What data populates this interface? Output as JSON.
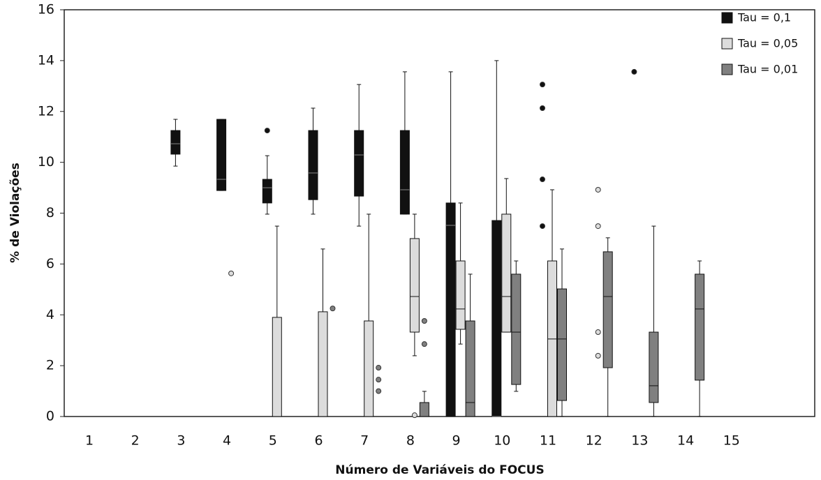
{
  "chart_data": {
    "type": "boxplot",
    "x_label": "Número de Variáveis do FOCUS",
    "y_label": "% de Violações",
    "categories": [
      "1",
      "2",
      "3",
      "4",
      "5",
      "6",
      "7",
      "8",
      "9",
      "10",
      "11",
      "12",
      "13",
      "14",
      "15"
    ],
    "ylim": [
      0,
      16
    ],
    "yticks": [
      0,
      2,
      4,
      6,
      8,
      10,
      12,
      14,
      16
    ],
    "legend": "top-right",
    "series": [
      {
        "name": "Tau = 0,1",
        "color": "#111111",
        "values": [
          null,
          null,
          {
            "min": 9.85,
            "q1": 10.32,
            "median": 10.73,
            "q3": 11.25,
            "max": 11.69
          },
          {
            "min": 8.89,
            "q1": 8.89,
            "median": 9.33,
            "q3": 11.69,
            "max": 11.69
          },
          {
            "min": 7.96,
            "q1": 8.4,
            "median": 9.0,
            "q3": 9.33,
            "max": 10.26,
            "outliers": [
              11.25
            ]
          },
          {
            "min": 7.96,
            "q1": 8.53,
            "median": 9.58,
            "q3": 11.25,
            "max": 12.13
          },
          {
            "min": 7.49,
            "q1": 8.67,
            "median": 10.29,
            "q3": 11.25,
            "max": 13.06
          },
          {
            "min": 7.96,
            "q1": 7.96,
            "median": 8.92,
            "q3": 11.25,
            "max": 13.56
          },
          {
            "min": 0,
            "q1": 0,
            "median": 7.52,
            "q3": 8.4,
            "max": 13.56
          },
          {
            "min": 0,
            "q1": 0,
            "median": 0,
            "q3": 7.71,
            "max": 14.0
          },
          {
            "outliers": [
              13.06,
              12.13,
              9.33,
              7.49
            ]
          },
          null,
          {
            "outliers": [
              13.56
            ]
          },
          null,
          null
        ]
      },
      {
        "name": "Tau = 0,05",
        "color": "#dcdcdc",
        "values": [
          null,
          null,
          null,
          {
            "outliers": [
              5.63
            ]
          },
          {
            "min": 0,
            "q1": 0,
            "median": 0,
            "q3": 3.9,
            "max": 7.49
          },
          {
            "min": 0,
            "q1": 0,
            "median": 0,
            "q3": 4.12,
            "max": 6.59
          },
          {
            "min": 0,
            "q1": 0,
            "median": 0,
            "q3": 3.76,
            "max": 7.96
          },
          {
            "min": 2.39,
            "q1": 3.32,
            "median": 4.72,
            "q3": 7.0,
            "max": 7.96,
            "outliers": [
              0.05
            ]
          },
          {
            "min": 2.85,
            "q1": 3.43,
            "median": 4.23,
            "q3": 6.12,
            "max": 8.4
          },
          {
            "min": 3.32,
            "q1": 3.32,
            "median": 4.72,
            "q3": 7.96,
            "max": 9.36
          },
          {
            "min": 0,
            "q1": 0,
            "median": 3.05,
            "q3": 6.12,
            "max": 8.92
          },
          {
            "outliers": [
              8.92,
              7.49,
              3.32,
              2.39
            ]
          },
          null,
          null,
          null
        ]
      },
      {
        "name": "Tau = 0,01",
        "color": "#808080",
        "values": [
          null,
          null,
          null,
          null,
          null,
          {
            "outliers": [
              4.25
            ]
          },
          {
            "outliers": [
              1.92,
              1.45,
              1.0
            ]
          },
          {
            "min": 0,
            "q1": 0,
            "median": 0,
            "q3": 0.55,
            "max": 0.99,
            "outliers": [
              3.76,
              2.85
            ]
          },
          {
            "min": 0,
            "q1": 0,
            "median": 0.55,
            "q3": 3.76,
            "max": 5.6
          },
          {
            "min": 0.99,
            "q1": 1.26,
            "median": 3.32,
            "q3": 5.6,
            "max": 6.12
          },
          {
            "min": 0,
            "q1": 0.63,
            "median": 3.05,
            "q3": 5.02,
            "max": 6.59
          },
          {
            "min": 0,
            "q1": 1.92,
            "median": 4.72,
            "q3": 6.48,
            "max": 7.03
          },
          {
            "min": 0,
            "q1": 0.55,
            "median": 1.21,
            "q3": 3.32,
            "max": 7.49
          },
          {
            "min": 0,
            "q1": 1.43,
            "median": 4.23,
            "q3": 5.6,
            "max": 6.12
          },
          null
        ]
      }
    ]
  }
}
